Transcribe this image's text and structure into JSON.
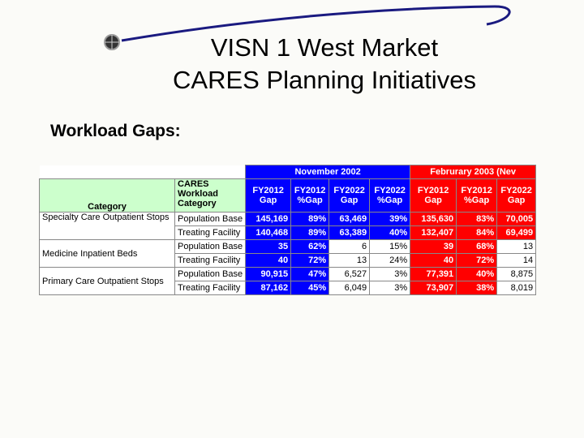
{
  "header": {
    "title_lines": [
      "VISN 1 West Market",
      "CARES Planning Initiatives"
    ],
    "subtitle": "Workload Gaps:"
  },
  "table": {
    "group_headers": [
      "November 2002",
      "Februrary 2003 (Nev"
    ],
    "columns": [
      "Category",
      "CARES Workload Category",
      "FY2012 Gap",
      "FY2012 %Gap",
      "FY2022 Gap",
      "FY2022 %Gap",
      "FY2012 Gap",
      "FY2012 %Gap",
      "FY2022 Gap"
    ],
    "groups": [
      {
        "category": "Specialty Care Outpatient Stops",
        "rows": [
          [
            "Population Base",
            "145,169",
            "89%",
            "63,469",
            "39%",
            "135,630",
            "83%",
            "70,005"
          ],
          [
            "Treating Facility",
            "140,468",
            "89%",
            "63,389",
            "40%",
            "132,407",
            "84%",
            "69,499"
          ]
        ]
      },
      {
        "category": "Medicine Inpatient Beds",
        "rows": [
          [
            "Population Base",
            "35",
            "62%",
            "6",
            "15%",
            "39",
            "68%",
            "13"
          ],
          [
            "Treating Facility",
            "40",
            "72%",
            "13",
            "24%",
            "40",
            "72%",
            "14"
          ]
        ]
      },
      {
        "category": "Primary Care Outpatient Stops",
        "rows": [
          [
            "Population Base",
            "90,915",
            "47%",
            "6,527",
            "3%",
            "77,391",
            "40%",
            "8,875"
          ],
          [
            "Treating Facility",
            "87,162",
            "45%",
            "6,049",
            "3%",
            "73,907",
            "38%",
            "8,019"
          ]
        ]
      }
    ]
  }
}
